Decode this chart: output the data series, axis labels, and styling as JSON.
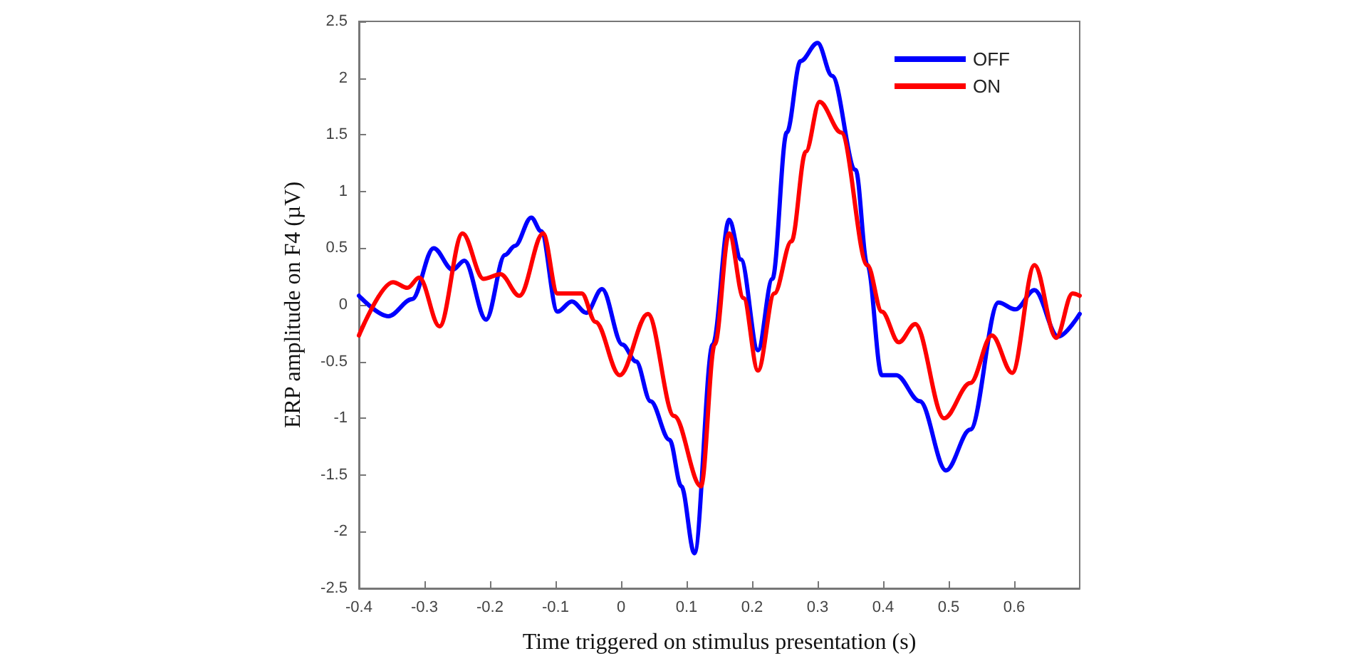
{
  "chart_data": {
    "type": "line",
    "xlabel": "Time triggered on stimulus presentation (s)",
    "ylabel": "ERP amplitude on F4 (µV)",
    "xlim": [
      -0.4,
      0.7
    ],
    "xticks": [
      -0.4,
      -0.3,
      -0.2,
      -0.1,
      0,
      0.1,
      0.2,
      0.3,
      0.4,
      0.5,
      0.6
    ],
    "ylim": [
      -2.5,
      2.5
    ],
    "yticks": [
      -2.5,
      -2,
      -1.5,
      -1,
      -0.5,
      0,
      0.5,
      1,
      1.5,
      2,
      2.5
    ],
    "legend": "top right",
    "grid": false,
    "marker": "none",
    "line_style": "solid",
    "series": [
      {
        "name": "OFF",
        "color": "#0000ff",
        "x": [
          -0.4,
          -0.355,
          -0.319,
          -0.286,
          -0.257,
          -0.239,
          -0.206,
          -0.177,
          -0.162,
          -0.137,
          -0.122,
          -0.097,
          -0.075,
          -0.053,
          -0.029,
          0.002,
          0.023,
          0.045,
          0.074,
          0.092,
          0.112,
          0.14,
          0.165,
          0.183,
          0.209,
          0.231,
          0.253,
          0.274,
          0.3,
          0.322,
          0.358,
          0.376,
          0.398,
          0.42,
          0.456,
          0.496,
          0.533,
          0.576,
          0.602,
          0.631,
          0.667,
          0.7
        ],
        "values": [
          0.08,
          -0.1,
          0.05,
          0.5,
          0.31,
          0.39,
          -0.13,
          0.44,
          0.52,
          0.77,
          0.65,
          -0.06,
          0.03,
          -0.07,
          0.14,
          -0.35,
          -0.5,
          -0.85,
          -1.19,
          -1.6,
          -2.19,
          -0.35,
          0.75,
          0.4,
          -0.4,
          0.23,
          1.52,
          2.15,
          2.31,
          2.02,
          1.19,
          0.35,
          -0.62,
          -0.62,
          -0.85,
          -1.46,
          -1.1,
          0.02,
          -0.04,
          0.13,
          -0.28,
          -0.08
        ]
      },
      {
        "name": "ON",
        "color": "#ff0000",
        "x": [
          -0.4,
          -0.348,
          -0.326,
          -0.308,
          -0.277,
          -0.242,
          -0.21,
          -0.184,
          -0.155,
          -0.119,
          -0.097,
          -0.06,
          -0.039,
          -0.002,
          0.041,
          0.081,
          0.122,
          0.143,
          0.165,
          0.187,
          0.209,
          0.234,
          0.26,
          0.282,
          0.303,
          0.336,
          0.376,
          0.398,
          0.424,
          0.449,
          0.493,
          0.533,
          0.566,
          0.597,
          0.631,
          0.664,
          0.689,
          0.7
        ],
        "values": [
          -0.27,
          0.2,
          0.15,
          0.24,
          -0.19,
          0.63,
          0.23,
          0.27,
          0.08,
          0.63,
          0.1,
          0.1,
          -0.15,
          -0.62,
          -0.08,
          -0.98,
          -1.6,
          -0.35,
          0.63,
          0.06,
          -0.58,
          0.1,
          0.56,
          1.35,
          1.79,
          1.52,
          0.35,
          -0.06,
          -0.33,
          -0.17,
          -1.0,
          -0.69,
          -0.27,
          -0.6,
          0.35,
          -0.29,
          0.1,
          0.08
        ]
      }
    ]
  }
}
